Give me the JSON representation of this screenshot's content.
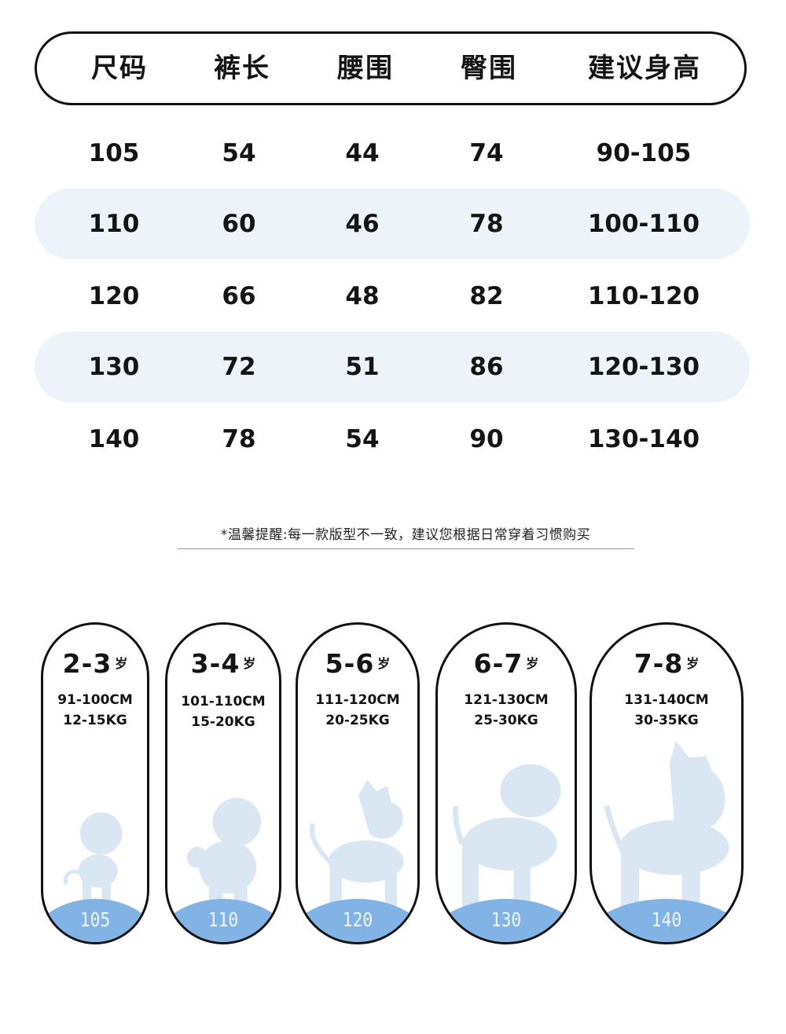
{
  "size_table": {
    "headers": [
      "尺码",
      "裤长",
      "腰围",
      "臀围",
      "建议身高"
    ],
    "rows": [
      [
        "105",
        "54",
        "44",
        "74",
        "90-105"
      ],
      [
        "110",
        "60",
        "46",
        "78",
        "100-110"
      ],
      [
        "120",
        "66",
        "48",
        "82",
        "110-120"
      ],
      [
        "130",
        "72",
        "51",
        "86",
        "120-130"
      ],
      [
        "140",
        "78",
        "54",
        "90",
        "130-140"
      ]
    ]
  },
  "note": "*温馨提醒:每一款版型不一致，建议您根据日常穿着习惯购买",
  "age_cards": [
    {
      "age": "2-3",
      "unit": "岁",
      "height": "91-100CM",
      "weight": "12-15KG",
      "size": "105",
      "icon": "toddler-animal-silhouette-icon"
    },
    {
      "age": "3-4",
      "unit": "岁",
      "height": "101-110CM",
      "weight": "15-20KG",
      "size": "110",
      "icon": "monkey-silhouette-icon"
    },
    {
      "age": "5-6",
      "unit": "岁",
      "height": "111-120CM",
      "weight": "20-25KG",
      "size": "120",
      "icon": "dog-silhouette-icon"
    },
    {
      "age": "6-7",
      "unit": "岁",
      "height": "121-130CM",
      "weight": "25-30KG",
      "size": "130",
      "icon": "puppy-silhouette-icon"
    },
    {
      "age": "7-8",
      "unit": "岁",
      "height": "131-140CM",
      "weight": "30-35KG",
      "size": "140",
      "icon": "cat-silhouette-icon"
    }
  ],
  "colors": {
    "row_shade": "#edf3f9",
    "ground_blue": "#82b3e5",
    "silhouette": "#dae6f1",
    "border": "#111111"
  }
}
